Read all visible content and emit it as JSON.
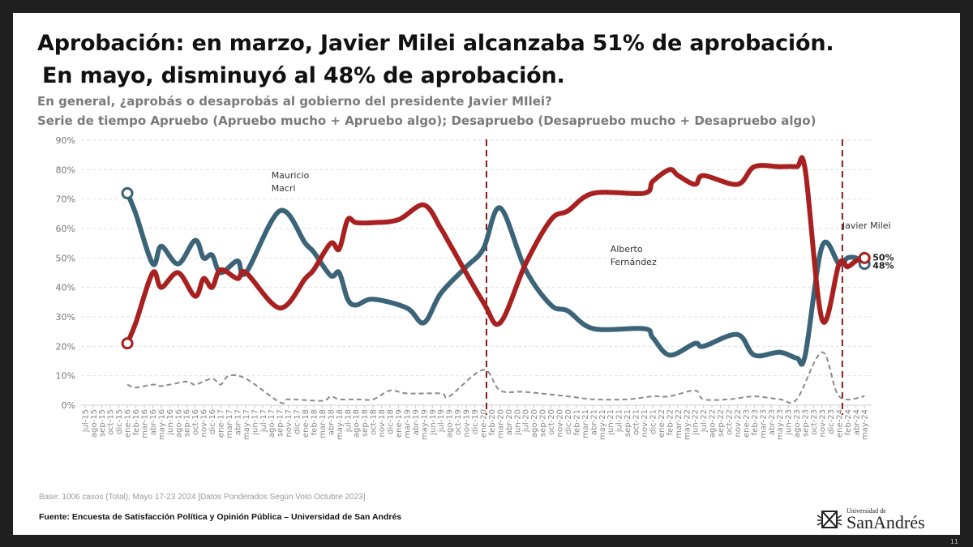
{
  "header": {
    "title_line1": "Aprobación: en marzo, Javier Milei alcanzaba 51% de aprobación.",
    "title_line2": "En mayo, disminuyó al 48% de aprobación.",
    "question": "En general, ¿aprobás o desaprobás al gobierno del presidente Javier MIlei?",
    "series_description": "Serie de tiempo Apruebo (Apruebo mucho + Apruebo algo); Desapruebo (Desapruebo mucho + Desapruebo algo)"
  },
  "footer": {
    "base": "Base: 1006 casos (Total), Mayo 17-23 2024 [Datos Ponderados Según Voto Octubre 2023]",
    "source": "Fuente: Encuesta de Satisfacción Política y Opinión Pública – Universidad de San Andrés",
    "logo_small": "Universidad de",
    "logo_big": "SanAndrés",
    "page_number": "11"
  },
  "chart_data": {
    "type": "line",
    "ylim": [
      0,
      90
    ],
    "yticks": [
      "0%",
      "10%",
      "20%",
      "30%",
      "40%",
      "50%",
      "60%",
      "70%",
      "80%",
      "90%"
    ],
    "grid": true,
    "legend": "none",
    "colors": {
      "approve": "#3b6478",
      "disapprove": "#a8201f",
      "ns_nc": "#8a8a8a",
      "period_line": "#8b1a1a"
    },
    "categories": [
      "jul-15",
      "ago-15",
      "sep-15",
      "oct-15",
      "dic-15",
      "ene-16",
      "feb-16",
      "mar-16",
      "abr-16",
      "may-16",
      "jun-16",
      "ago-16",
      "sep-16",
      "oct-16",
      "nov-16",
      "dic-16",
      "ene-17",
      "mar-17",
      "abr-17",
      "may-17",
      "jun-17",
      "jul-17",
      "ago-17",
      "sep-17",
      "nov-17",
      "dic-17",
      "ene-18",
      "feb-18",
      "mar-18",
      "abr-18",
      "may-18",
      "jul-18",
      "ago-18",
      "sep-18",
      "oct-18",
      "nov-18",
      "dic-18",
      "ene-19",
      "mar-19",
      "abr-19",
      "may-19",
      "jun-19",
      "jul-19",
      "ago-19",
      "oct-19",
      "nov-19",
      "dic-19",
      "ene-20",
      "feb-20",
      "mar-20",
      "abr-20",
      "jun-20",
      "jul-20",
      "ago-20",
      "sep-20",
      "oct-20",
      "nov-20",
      "dic-20",
      "feb-21",
      "mar-21",
      "abr-21",
      "may-21",
      "jun-21",
      "jul-21",
      "sep-21",
      "oct-21",
      "nov-21",
      "dic-21",
      "ene-22",
      "feb-22",
      "mar-22",
      "may-22",
      "jun-22",
      "jul-22",
      "ago-22",
      "sep-22",
      "oct-22",
      "nov-22",
      "ene-23",
      "feb-23",
      "mar-23",
      "abr-23",
      "may-23",
      "jun-23",
      "ago-23",
      "sep-23",
      "oct-23",
      "nov-23",
      "dic-23",
      "ene-24",
      "feb-24",
      "abr-24",
      "may-24"
    ],
    "series": [
      {
        "id": "approve",
        "style": "solid",
        "points": [
          [
            "ene-16",
            72
          ],
          [
            "feb-16",
            65
          ],
          [
            "abr-16",
            48
          ],
          [
            "may-16",
            54
          ],
          [
            "ago-16",
            48
          ],
          [
            "oct-16",
            56
          ],
          [
            "nov-16",
            50
          ],
          [
            "dic-16",
            51
          ],
          [
            "ene-17",
            45
          ],
          [
            "abr-17",
            49
          ],
          [
            "may-17",
            45
          ],
          [
            "sep-17",
            66
          ],
          [
            "ene-18",
            55
          ],
          [
            "feb-18",
            52
          ],
          [
            "abr-18",
            44
          ],
          [
            "may-18",
            45
          ],
          [
            "jul-18",
            36
          ],
          [
            "ago-18",
            34
          ],
          [
            "oct-18",
            36
          ],
          [
            "mar-19",
            33
          ],
          [
            "may-19",
            28
          ],
          [
            "jul-19",
            38
          ],
          [
            "nov-19",
            47
          ],
          [
            "ene-20",
            53
          ],
          [
            "mar-20",
            67
          ],
          [
            "jul-20",
            46
          ],
          [
            "oct-20",
            34
          ],
          [
            "dic-20",
            32
          ],
          [
            "abr-21",
            26
          ],
          [
            "nov-21",
            26
          ],
          [
            "dic-21",
            23
          ],
          [
            "feb-22",
            17
          ],
          [
            "jun-22",
            21
          ],
          [
            "jul-22",
            20
          ],
          [
            "nov-22",
            24
          ],
          [
            "feb-23",
            17
          ],
          [
            "may-23",
            18
          ],
          [
            "ago-23",
            16
          ],
          [
            "sep-23",
            17
          ],
          [
            "nov-23",
            54
          ],
          [
            "ene-24",
            48
          ],
          [
            "feb-24",
            50
          ],
          [
            "abr-24",
            50
          ],
          [
            "may-24",
            48
          ]
        ]
      },
      {
        "id": "disapprove",
        "style": "solid",
        "points": [
          [
            "ene-16",
            21
          ],
          [
            "feb-16",
            28
          ],
          [
            "abr-16",
            45
          ],
          [
            "may-16",
            40
          ],
          [
            "ago-16",
            45
          ],
          [
            "oct-16",
            37
          ],
          [
            "nov-16",
            43
          ],
          [
            "dic-16",
            40
          ],
          [
            "ene-17",
            46
          ],
          [
            "abr-17",
            43
          ],
          [
            "may-17",
            45
          ],
          [
            "sep-17",
            33
          ],
          [
            "ene-18",
            43
          ],
          [
            "feb-18",
            46
          ],
          [
            "abr-18",
            55
          ],
          [
            "may-18",
            53
          ],
          [
            "jul-18",
            63
          ],
          [
            "ago-18",
            62
          ],
          [
            "oct-18",
            62
          ],
          [
            "ene-19",
            63
          ],
          [
            "may-19",
            68
          ],
          [
            "jul-19",
            60
          ],
          [
            "ago-19",
            55
          ],
          [
            "ene-20",
            35
          ],
          [
            "mar-20",
            28
          ],
          [
            "jul-20",
            48
          ],
          [
            "oct-20",
            63
          ],
          [
            "dic-20",
            66
          ],
          [
            "abr-21",
            72
          ],
          [
            "nov-21",
            72
          ],
          [
            "dic-21",
            76
          ],
          [
            "feb-22",
            80
          ],
          [
            "mar-22",
            78
          ],
          [
            "jun-22",
            75
          ],
          [
            "jul-22",
            78
          ],
          [
            "nov-22",
            75
          ],
          [
            "feb-23",
            81
          ],
          [
            "may-23",
            81
          ],
          [
            "ago-23",
            81
          ],
          [
            "sep-23",
            80
          ],
          [
            "nov-23",
            29
          ],
          [
            "ene-24",
            48
          ],
          [
            "feb-24",
            47
          ],
          [
            "abr-24",
            49
          ],
          [
            "may-24",
            50
          ]
        ]
      },
      {
        "id": "ns_nc",
        "style": "dashed",
        "points": [
          [
            "ene-16",
            7
          ],
          [
            "feb-16",
            6
          ],
          [
            "abr-16",
            7
          ],
          [
            "may-16",
            6.5
          ],
          [
            "sep-16",
            8
          ],
          [
            "oct-16",
            7
          ],
          [
            "dic-16",
            9
          ],
          [
            "ene-17",
            7
          ],
          [
            "mar-17",
            10
          ],
          [
            "may-17",
            9
          ],
          [
            "sep-17",
            1
          ],
          [
            "nov-17",
            2
          ],
          [
            "mar-18",
            1.5
          ],
          [
            "abr-18",
            3
          ],
          [
            "may-18",
            2
          ],
          [
            "ago-18",
            2
          ],
          [
            "oct-18",
            2
          ],
          [
            "dic-18",
            5
          ],
          [
            "mar-19",
            4
          ],
          [
            "jul-19",
            4
          ],
          [
            "ago-19",
            3
          ],
          [
            "ene-20",
            12
          ],
          [
            "mar-20",
            5
          ],
          [
            "jul-20",
            4.5
          ],
          [
            "dic-20",
            3
          ],
          [
            "abr-21",
            2
          ],
          [
            "sep-21",
            2
          ],
          [
            "dic-21",
            3
          ],
          [
            "feb-22",
            3
          ],
          [
            "jun-22",
            5
          ],
          [
            "jul-22",
            2
          ],
          [
            "oct-22",
            2
          ],
          [
            "feb-23",
            3
          ],
          [
            "may-23",
            2
          ],
          [
            "ago-23",
            2
          ],
          [
            "nov-23",
            18
          ],
          [
            "ene-24",
            3
          ],
          [
            "may-24",
            3
          ]
        ]
      }
    ],
    "period_lines": [
      "ene-20",
      "ene-24"
    ],
    "annotations": [
      {
        "lines": [
          "Mauricio",
          "Macri"
        ],
        "at": "ago-17",
        "y": 77
      },
      {
        "lines": [
          "Alberto",
          "Fernández"
        ],
        "at": "jun-21",
        "y": 52
      },
      {
        "lines": [
          "Javier Milei"
        ],
        "at": "ene-24",
        "y": 60
      }
    ],
    "end_labels": [
      {
        "series": "disapprove",
        "text": "50%"
      },
      {
        "series": "approve",
        "text": "48%"
      }
    ]
  }
}
